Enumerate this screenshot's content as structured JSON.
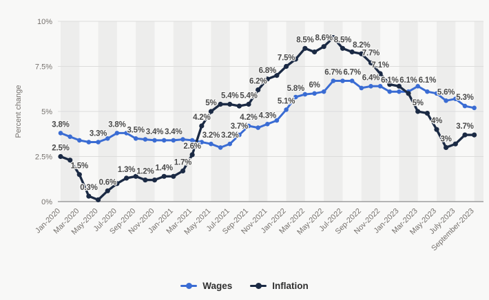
{
  "chart_data": {
    "type": "line",
    "title": "",
    "ylabel": "Percent change",
    "ylim": [
      0,
      10
    ],
    "yticks": [
      {
        "label": "0%",
        "value": 0
      },
      {
        "label": "2.5%",
        "value": 2.5
      },
      {
        "label": "5%",
        "value": 5
      },
      {
        "label": "7.5%",
        "value": 7.5
      },
      {
        "label": "10%",
        "value": 10
      }
    ],
    "x": [
      "Jan-2020",
      "Feb-2020",
      "Mar-2020",
      "Apr-2020",
      "May-2020",
      "Jun-2020",
      "Jul-2020",
      "Aug-2020",
      "Sep-2020",
      "Oct-2020",
      "Nov-2020",
      "Dec-2020",
      "Jan-2021",
      "Feb-2021",
      "Mar-2021",
      "Apr-2021",
      "May-2021",
      "Jun-2021",
      "Jul-2021",
      "Aug-2021",
      "Sep-2021",
      "Oct-2021",
      "Nov-2021",
      "Dec-2021",
      "Jan-2022",
      "Feb-2022",
      "Mar-2022",
      "Apr-2022",
      "May-2022",
      "Jun-2022",
      "Jul-2022",
      "Aug-2022",
      "Sep-2022",
      "Oct-2022",
      "Nov-2022",
      "Dec-2022",
      "Jan-2023",
      "Feb-2023",
      "Mar-2023",
      "Apr-2023",
      "May-2023",
      "Jun-2023",
      "July-2023",
      "Aug-2023",
      "September-2023"
    ],
    "xtick_every": 2,
    "grid": true,
    "background_stripes": true,
    "legend_position": "bottom",
    "series": [
      {
        "name": "Wages",
        "color": "#3a6cd3",
        "values": [
          3.8,
          3.6,
          3.4,
          3.3,
          3.3,
          3.5,
          3.8,
          3.8,
          3.5,
          3.45,
          3.4,
          3.4,
          3.4,
          3.45,
          3.4,
          3.3,
          3.2,
          3.0,
          3.2,
          3.7,
          4.2,
          4.1,
          4.3,
          4.5,
          5.1,
          5.8,
          5.95,
          6.0,
          6.1,
          6.7,
          6.7,
          6.7,
          6.3,
          6.4,
          6.4,
          6.1,
          6.1,
          6.1,
          6.4,
          6.1,
          6.0,
          5.6,
          5.7,
          5.3,
          5.2
        ],
        "point_labels": {
          "0": "3.8%",
          "4": "3.3%",
          "6": "3.8%",
          "8": "3.5%",
          "10": "3.4%",
          "12": "3.4%",
          "16": "3.2%",
          "18": "3.2%",
          "19": "3.7%",
          "20": "4.2%",
          "22": "4.3%",
          "24": "5.1%",
          "25": "5.8%",
          "27": "6%",
          "29": "6.7%",
          "31": "6.7%",
          "33": "6.4%",
          "35": "6.1%",
          "37": "6.1%",
          "39": "6.1%",
          "41": "5.6%",
          "43": "5.3%"
        },
        "label_dy": {
          "35": -4,
          "37": -4,
          "39": -4
        }
      },
      {
        "name": "Inflation",
        "color": "#1b2a44",
        "values": [
          2.5,
          2.3,
          1.5,
          0.3,
          0.1,
          0.6,
          1.0,
          1.3,
          1.4,
          1.2,
          1.2,
          1.4,
          1.4,
          1.7,
          2.6,
          4.2,
          5.0,
          5.4,
          5.4,
          5.3,
          5.4,
          6.2,
          6.8,
          7.0,
          7.5,
          7.9,
          8.5,
          8.3,
          8.6,
          9.1,
          8.5,
          8.3,
          8.2,
          7.7,
          7.1,
          6.5,
          6.4,
          6.0,
          5.0,
          4.9,
          4.0,
          3.0,
          3.2,
          3.7,
          3.7
        ],
        "point_labels": {
          "0": "2.5%",
          "2": "1.5%",
          "3": "0.3%",
          "5": "0.6%",
          "7": "1.3%",
          "9": "1.2%",
          "11": "1.4%",
          "13": "1.7%",
          "14": "2.6%",
          "15": "4.2%",
          "16": "5%",
          "18": "5.4%",
          "20": "5.4%",
          "21": "6.2%",
          "22": "6.8%",
          "24": "7.5%",
          "26": "8.5%",
          "28": "8.6%",
          "30": "8.5%",
          "32": "8.2%",
          "33": "7.7%",
          "34": "7.1%",
          "38": "5%",
          "40": "4%",
          "41": "3%",
          "43": "3.7%"
        },
        "label_dy": {
          "33": -2
        }
      }
    ],
    "legend": [
      "Wages",
      "Inflation"
    ]
  },
  "style_colors": {
    "page_background": "#f8f8f7",
    "stripe": "#ededec",
    "gridline": "#dcdcdb",
    "axis_line": "#8c8c8c",
    "axis_text": "#75716d",
    "data_label": "#4a4a4a"
  }
}
